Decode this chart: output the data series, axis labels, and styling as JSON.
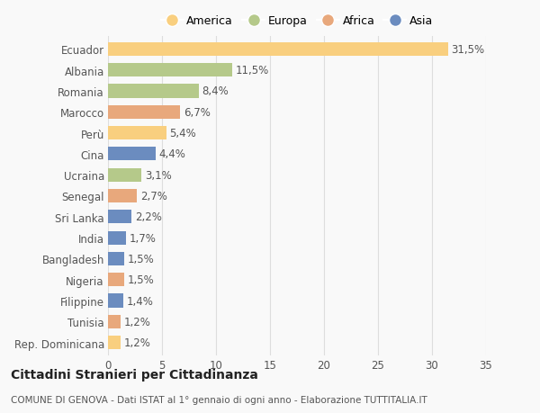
{
  "countries": [
    "Ecuador",
    "Albania",
    "Romania",
    "Marocco",
    "Perù",
    "Cina",
    "Ucraina",
    "Senegal",
    "Sri Lanka",
    "India",
    "Bangladesh",
    "Nigeria",
    "Filippine",
    "Tunisia",
    "Rep. Dominicana"
  ],
  "values": [
    31.5,
    11.5,
    8.4,
    6.7,
    5.4,
    4.4,
    3.1,
    2.7,
    2.2,
    1.7,
    1.5,
    1.5,
    1.4,
    1.2,
    1.2
  ],
  "labels": [
    "31,5%",
    "11,5%",
    "8,4%",
    "6,7%",
    "5,4%",
    "4,4%",
    "3,1%",
    "2,7%",
    "2,2%",
    "1,7%",
    "1,5%",
    "1,5%",
    "1,4%",
    "1,2%",
    "1,2%"
  ],
  "continents": [
    "America",
    "Europa",
    "Europa",
    "Africa",
    "America",
    "Asia",
    "Europa",
    "Africa",
    "Asia",
    "Asia",
    "Asia",
    "Africa",
    "Asia",
    "Africa",
    "America"
  ],
  "colors": {
    "America": "#F9CF7F",
    "Europa": "#B5C98A",
    "Africa": "#E8A87C",
    "Asia": "#6B8CBF"
  },
  "legend_order": [
    "America",
    "Europa",
    "Africa",
    "Asia"
  ],
  "xlim": [
    0,
    35
  ],
  "xticks": [
    0,
    5,
    10,
    15,
    20,
    25,
    30,
    35
  ],
  "background_color": "#f9f9f9",
  "title": "Cittadini Stranieri per Cittadinanza",
  "subtitle": "COMUNE DI GENOVA - Dati ISTAT al 1° gennaio di ogni anno - Elaborazione TUTTITALIA.IT",
  "bar_height": 0.65,
  "grid_color": "#dddddd",
  "text_color": "#555555",
  "label_fontsize": 8.5,
  "tick_fontsize": 8.5,
  "title_fontsize": 10,
  "subtitle_fontsize": 7.5
}
